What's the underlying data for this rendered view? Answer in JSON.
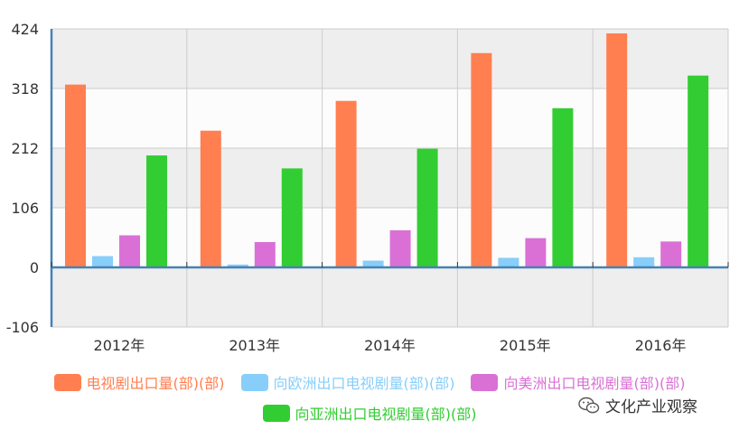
{
  "chart_data": {
    "type": "bar",
    "categories": [
      "2012年",
      "2013年",
      "2014年",
      "2015年",
      "2016年"
    ],
    "series": [
      {
        "name": "电视剧出口量(部)(部)",
        "color": "#FF7F50",
        "values": [
          325,
          243,
          296,
          381,
          416
        ]
      },
      {
        "name": "向欧洲出口电视剧量(部)(部)",
        "color": "#87CEFA",
        "values": [
          20,
          5,
          12,
          17,
          18
        ]
      },
      {
        "name": "向美洲出口电视剧量(部)(部)",
        "color": "#DA70D6",
        "values": [
          57,
          45,
          66,
          52,
          46
        ]
      },
      {
        "name": "向亚洲出口电视剧量(部)(部)",
        "color": "#32CD32",
        "values": [
          199,
          176,
          211,
          283,
          341
        ]
      }
    ],
    "yticks": [
      "424",
      "318",
      "212",
      "106",
      "0",
      "-106"
    ],
    "ylim": [
      -106,
      424
    ],
    "grid": true,
    "legend_position": "bottom"
  },
  "watermark": {
    "text": "文化产业观察",
    "icon": "wechat-icon"
  }
}
